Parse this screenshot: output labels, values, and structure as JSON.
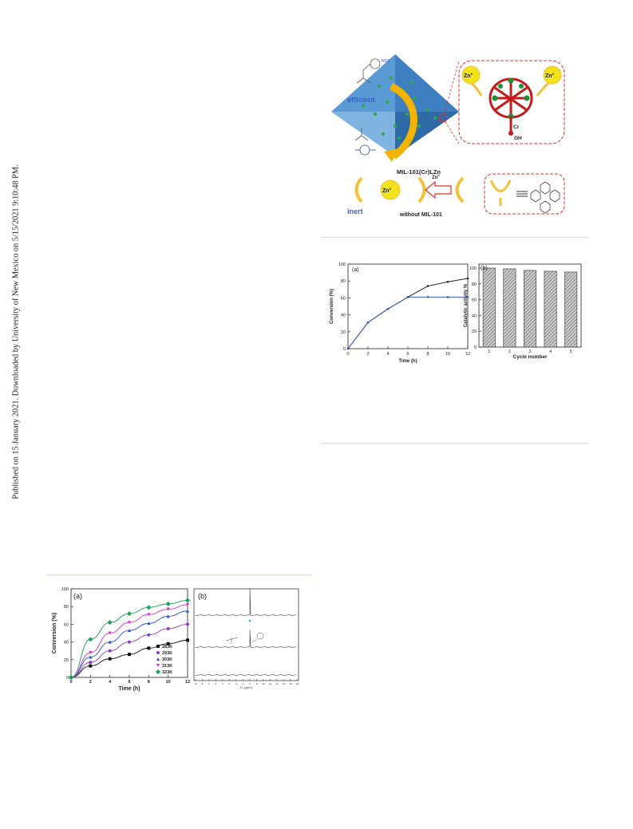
{
  "sidebar": {
    "text": "Published on 15 January 2021. Downloaded by University of New Mexico on 5/15/2021 9:10:48 PM."
  },
  "scheme": {
    "efficient_label": "efficient",
    "inert_label": "inert",
    "mof_label": "MIL-101(Cr)LZn",
    "without_label": "without MIL-101",
    "zn_label": "Zn",
    "zn_sup": "II",
    "cr_label": "Cr",
    "oh_label": "OH",
    "no2": "NO2",
    "colors": {
      "mof": "#3d7fc0",
      "arrow": "#f2b400",
      "dash": "#e03030",
      "cluster_red": "#d21e1e",
      "cluster_green": "#1b8f3a",
      "zn_yellow": "#f2e21a"
    }
  },
  "fig_top": {
    "panel_a": {
      "label": "(a)",
      "chart_data": {
        "type": "line",
        "xlabel": "Time (h)",
        "ylabel": "Conversion (%)",
        "xlim": [
          0,
          12
        ],
        "ylim": [
          0,
          100
        ],
        "xticks": [
          "0",
          "2",
          "4",
          "6",
          "8",
          "10",
          "12"
        ],
        "yticks": [
          "0",
          "20",
          "40",
          "60",
          "80",
          "100"
        ],
        "series": [
          {
            "color": "#222222",
            "x": [
              0,
              2,
              4,
              6,
              8,
              10,
              12
            ],
            "values": [
              0,
              31,
              47,
              61,
              74,
              79,
              83
            ]
          },
          {
            "color": "#3e55c8",
            "x": [
              0,
              2,
              4,
              6,
              8,
              10,
              12
            ],
            "values": [
              0,
              31,
              47,
              61,
              61,
              61,
              61
            ]
          }
        ]
      }
    },
    "panel_b": {
      "label": "(b)",
      "chart_data": {
        "type": "bar",
        "xlabel": "Cycle number",
        "ylabel": "Catalytic activity %",
        "categories": [
          "1",
          "2",
          "3",
          "4",
          "5"
        ],
        "values": [
          100,
          99,
          97,
          96,
          95
        ],
        "ylim": [
          0,
          105
        ],
        "yticks": [
          "0",
          "20",
          "40",
          "60",
          "80",
          "100"
        ]
      }
    }
  },
  "fig_bottom": {
    "panel_a": {
      "label": "(a)",
      "chart_data": {
        "type": "scatter",
        "xlabel": "Time (h)",
        "ylabel": "Conversion (%)",
        "xlim": [
          0,
          12
        ],
        "ylim": [
          0,
          100
        ],
        "xticks": [
          "0",
          "2",
          "4",
          "6",
          "8",
          "10",
          "12"
        ],
        "yticks": [
          "0",
          "20",
          "40",
          "60",
          "80",
          "100"
        ],
        "legend_position": "bottom-right",
        "series": [
          {
            "name": "283K",
            "color": "#111111",
            "marker": "square",
            "x": [
              0,
              2,
              4,
              6,
              8,
              10,
              12
            ],
            "values": [
              0,
              13,
              21,
              26,
              33,
              38,
              42
            ]
          },
          {
            "name": "293K",
            "color": "#8a3fc7",
            "marker": "circle",
            "x": [
              0,
              2,
              4,
              6,
              8,
              10,
              12
            ],
            "values": [
              0,
              17,
              30,
              40,
              48,
              55,
              60
            ]
          },
          {
            "name": "303K",
            "color": "#2c4fd1",
            "marker": "triangle-up",
            "x": [
              0,
              2,
              4,
              6,
              8,
              10,
              12
            ],
            "values": [
              0,
              23,
              40,
              53,
              61,
              69,
              75
            ]
          },
          {
            "name": "313K",
            "color": "#d132c8",
            "marker": "triangle-down",
            "x": [
              0,
              2,
              4,
              6,
              8,
              10,
              12
            ],
            "values": [
              0,
              28,
              50,
              62,
              71,
              77,
              82
            ]
          },
          {
            "name": "323K",
            "color": "#16a05a",
            "marker": "diamond",
            "x": [
              0,
              2,
              4,
              6,
              8,
              10,
              12
            ],
            "values": [
              0,
              43,
              62,
              72,
              79,
              83,
              87
            ]
          }
        ]
      }
    },
    "panel_b": {
      "label": "(b)",
      "xlabel": "f1 (ppm)",
      "xticks": [
        "10",
        "8",
        "6",
        "4",
        "2",
        "0",
        "-2",
        "-4",
        "-6",
        "-8",
        "-10",
        "-12",
        "-14",
        "-16",
        "-18",
        "-20"
      ]
    }
  }
}
